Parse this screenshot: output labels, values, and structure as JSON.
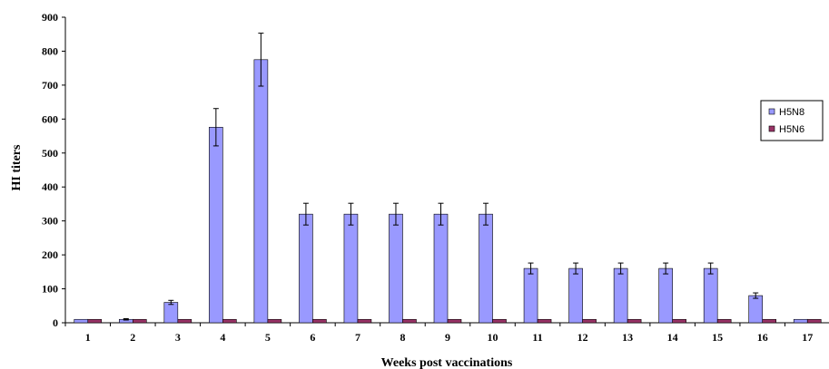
{
  "chart_data": {
    "type": "bar",
    "xlabel": "Weeks post vaccinations",
    "ylabel": "HI titers",
    "ylim": [
      0,
      900
    ],
    "yticks": [
      0,
      100,
      200,
      300,
      400,
      500,
      600,
      700,
      800,
      900
    ],
    "categories": [
      "1",
      "2",
      "3",
      "4",
      "5",
      "6",
      "7",
      "8",
      "9",
      "10",
      "11",
      "12",
      "13",
      "14",
      "15",
      "16",
      "17"
    ],
    "series": [
      {
        "name": "H5N8",
        "color": "#9999ff",
        "values": [
          10,
          10,
          60,
          576,
          775,
          320,
          320,
          320,
          320,
          320,
          160,
          160,
          160,
          160,
          160,
          80,
          10
        ],
        "errors": [
          0,
          2,
          6,
          55,
          78,
          32,
          32,
          32,
          32,
          32,
          16,
          16,
          16,
          16,
          16,
          8,
          0
        ]
      },
      {
        "name": "H5N6",
        "color": "#993366",
        "values": [
          10,
          10,
          10,
          10,
          10,
          10,
          10,
          10,
          10,
          10,
          10,
          10,
          10,
          10,
          10,
          10,
          10
        ],
        "errors": [
          0,
          0,
          0,
          0,
          0,
          0,
          0,
          0,
          0,
          0,
          0,
          0,
          0,
          0,
          0,
          0,
          0
        ]
      }
    ],
    "grid": false,
    "legend_position": "right"
  }
}
